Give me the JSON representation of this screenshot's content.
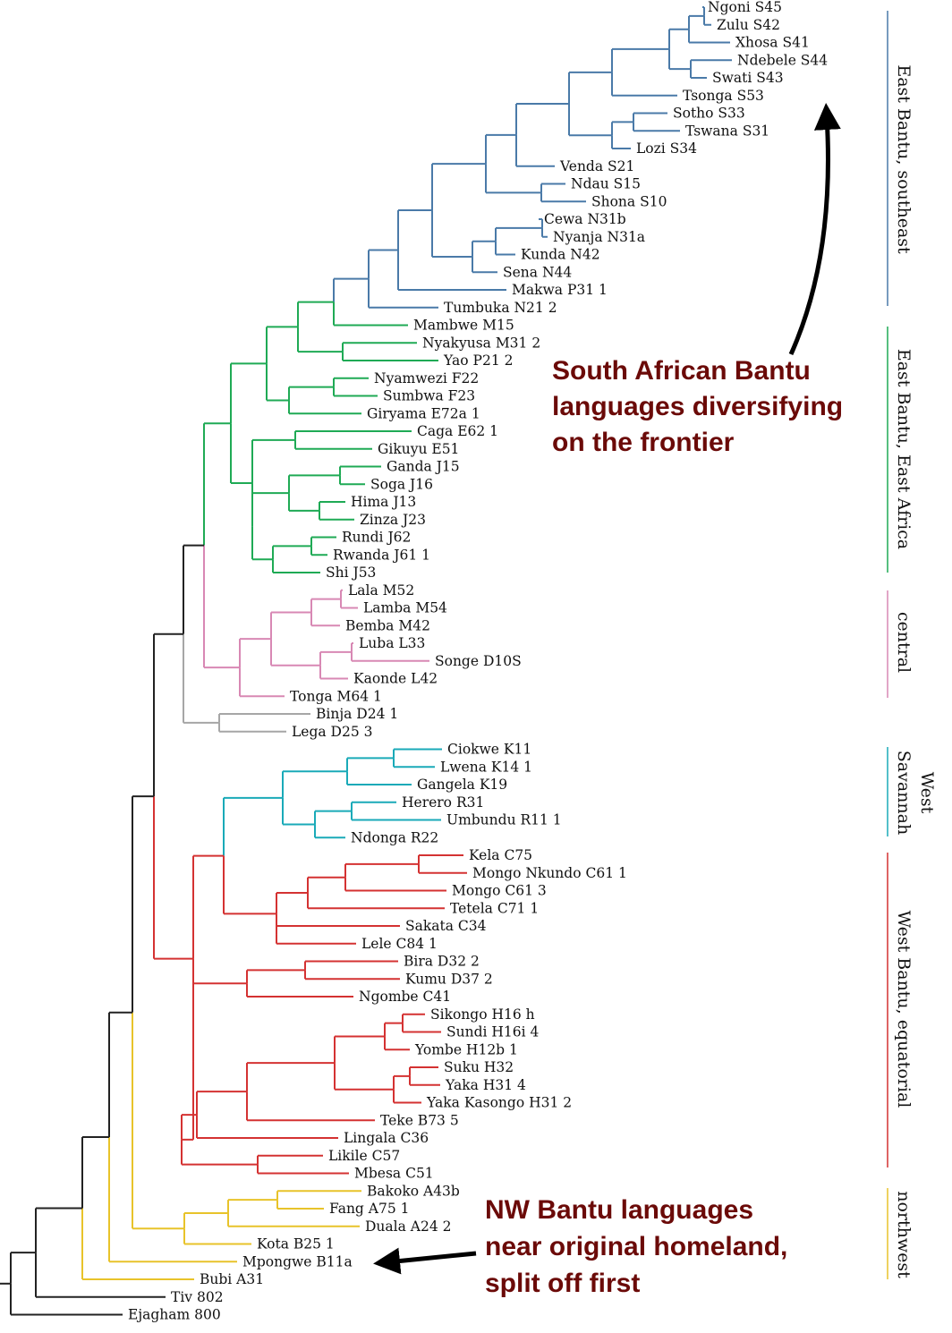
{
  "colors": {
    "southeast": "#4a7aa8",
    "eastafrica": "#1faa55",
    "central": "#d888b4",
    "binja_lega": "#a6a6a6",
    "westsavannah": "#1aaab8",
    "equatorial": "#d43232",
    "northwest": "#e8c32a",
    "root": "#222222",
    "callout": "#6b0a08"
  },
  "tree": {
    "leaves": [
      {
        "name": "Ngoni S45",
        "group": "southeast"
      },
      {
        "name": "Zulu S42",
        "group": "southeast"
      },
      {
        "name": "Xhosa S41",
        "group": "southeast"
      },
      {
        "name": "Ndebele S44",
        "group": "southeast"
      },
      {
        "name": "Swati S43",
        "group": "southeast"
      },
      {
        "name": "Tsonga S53",
        "group": "southeast"
      },
      {
        "name": "Sotho S33",
        "group": "southeast"
      },
      {
        "name": "Tswana S31",
        "group": "southeast"
      },
      {
        "name": "Lozi S34",
        "group": "southeast"
      },
      {
        "name": "Venda S21",
        "group": "southeast"
      },
      {
        "name": "Ndau S15",
        "group": "southeast"
      },
      {
        "name": "Shona S10",
        "group": "southeast"
      },
      {
        "name": "Cewa N31b",
        "group": "southeast"
      },
      {
        "name": "Nyanja N31a",
        "group": "southeast"
      },
      {
        "name": "Kunda N42",
        "group": "southeast"
      },
      {
        "name": "Sena N44",
        "group": "southeast"
      },
      {
        "name": "Makwa P31 1",
        "group": "southeast"
      },
      {
        "name": "Tumbuka N21 2",
        "group": "southeast"
      },
      {
        "name": "Mambwe M15",
        "group": "eastafrica"
      },
      {
        "name": "Nyakyusa M31 2",
        "group": "eastafrica"
      },
      {
        "name": "Yao P21 2",
        "group": "eastafrica"
      },
      {
        "name": "Nyamwezi F22",
        "group": "eastafrica"
      },
      {
        "name": "Sumbwa F23",
        "group": "eastafrica"
      },
      {
        "name": "Giryama E72a 1",
        "group": "eastafrica"
      },
      {
        "name": "Caga E62 1",
        "group": "eastafrica"
      },
      {
        "name": "Gikuyu E51",
        "group": "eastafrica"
      },
      {
        "name": "Ganda J15",
        "group": "eastafrica"
      },
      {
        "name": "Soga J16",
        "group": "eastafrica"
      },
      {
        "name": "Hima J13",
        "group": "eastafrica"
      },
      {
        "name": "Zinza J23",
        "group": "eastafrica"
      },
      {
        "name": "Rundi J62",
        "group": "eastafrica"
      },
      {
        "name": "Rwanda J61 1",
        "group": "eastafrica"
      },
      {
        "name": "Shi J53",
        "group": "eastafrica"
      },
      {
        "name": "Lala M52",
        "group": "central"
      },
      {
        "name": "Lamba M54",
        "group": "central"
      },
      {
        "name": "Bemba M42",
        "group": "central"
      },
      {
        "name": "Luba L33",
        "group": "central"
      },
      {
        "name": "Songe D10S",
        "group": "central"
      },
      {
        "name": "Kaonde L42",
        "group": "central"
      },
      {
        "name": "Tonga M64 1",
        "group": "central"
      },
      {
        "name": "Binja D24 1",
        "group": "binja_lega"
      },
      {
        "name": "Lega D25 3",
        "group": "binja_lega"
      },
      {
        "name": "Ciokwe K11",
        "group": "westsavannah"
      },
      {
        "name": "Lwena K14 1",
        "group": "westsavannah"
      },
      {
        "name": "Gangela K19",
        "group": "westsavannah"
      },
      {
        "name": "Herero R31",
        "group": "westsavannah"
      },
      {
        "name": "Umbundu R11 1",
        "group": "westsavannah"
      },
      {
        "name": "Ndonga R22",
        "group": "westsavannah"
      },
      {
        "name": "Kela C75",
        "group": "equatorial"
      },
      {
        "name": "Mongo Nkundo C61 1",
        "group": "equatorial"
      },
      {
        "name": "Mongo C61 3",
        "group": "equatorial"
      },
      {
        "name": "Tetela C71 1",
        "group": "equatorial"
      },
      {
        "name": "Sakata C34",
        "group": "equatorial"
      },
      {
        "name": "Lele C84 1",
        "group": "equatorial"
      },
      {
        "name": "Bira D32 2",
        "group": "equatorial"
      },
      {
        "name": "Kumu D37 2",
        "group": "equatorial"
      },
      {
        "name": "Ngombe C41",
        "group": "equatorial"
      },
      {
        "name": "Sikongo H16 h",
        "group": "equatorial"
      },
      {
        "name": "Sundi H16i 4",
        "group": "equatorial"
      },
      {
        "name": "Yombe H12b 1",
        "group": "equatorial"
      },
      {
        "name": "Suku H32",
        "group": "equatorial"
      },
      {
        "name": "Yaka H31 4",
        "group": "equatorial"
      },
      {
        "name": "Yaka Kasongo H31 2",
        "group": "equatorial"
      },
      {
        "name": "Teke B73 5",
        "group": "equatorial"
      },
      {
        "name": "Lingala C36",
        "group": "equatorial"
      },
      {
        "name": "Likile C57",
        "group": "equatorial"
      },
      {
        "name": "Mbesa C51",
        "group": "equatorial"
      },
      {
        "name": "Bakoko A43b",
        "group": "northwest"
      },
      {
        "name": "Fang A75 1",
        "group": "northwest"
      },
      {
        "name": "Duala A24 2",
        "group": "northwest"
      },
      {
        "name": "Kota B25 1",
        "group": "northwest"
      },
      {
        "name": "Mpongwe B11a",
        "group": "northwest"
      },
      {
        "name": "Bubi A31",
        "group": "northwest"
      },
      {
        "name": "Tiv 802",
        "group": "root"
      },
      {
        "name": "Ejagham 800",
        "group": "root"
      }
    ]
  },
  "groups": [
    {
      "id": "southeast",
      "label": "East Bantu, southeast"
    },
    {
      "id": "eastafrica",
      "label": "East Bantu, East Africa"
    },
    {
      "id": "central",
      "label": "central"
    },
    {
      "id": "westsavannah",
      "label_line1": "West",
      "label_line2": "Savannah"
    },
    {
      "id": "equatorial",
      "label": "West Bantu, equatorial"
    },
    {
      "id": "northwest",
      "label": "northwest"
    }
  ],
  "callouts": {
    "south": [
      "South African Bantu",
      "languages diversifying",
      "on the frontier"
    ],
    "northwest": [
      "NW Bantu languages",
      "near original homeland,",
      "split off first"
    ]
  }
}
